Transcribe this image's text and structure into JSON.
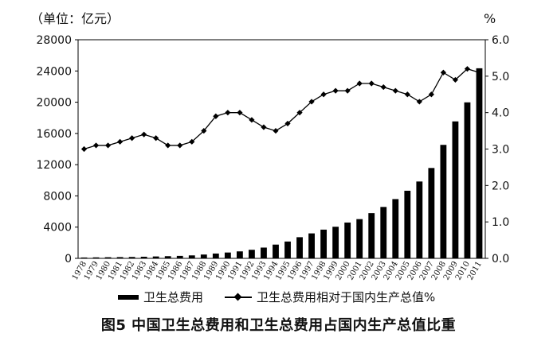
{
  "chart_data": {
    "type": "bar",
    "title": "图5 中国卫生总费用和卫生总费用占国内生产总值比重",
    "y_left_unit": "（单位：亿元）",
    "y_right_unit": "%",
    "ylim_left": [
      0,
      28000
    ],
    "ylim_right": [
      0,
      6
    ],
    "yticks_left": [
      "0",
      "4000",
      "8000",
      "12000",
      "16000",
      "20000",
      "24000",
      "28000"
    ],
    "yticks_right": [
      "0.0",
      "1.0",
      "2.0",
      "3.0",
      "4.0",
      "5.0",
      "6.0"
    ],
    "legend_placement": "bottom",
    "categories": [
      "1978",
      "1979",
      "1980",
      "1981",
      "1982",
      "1983",
      "1984",
      "1985",
      "1986",
      "1987",
      "1988",
      "1989",
      "1990",
      "1991",
      "1992",
      "1993",
      "1994",
      "1995",
      "1996",
      "1997",
      "1998",
      "1999",
      "2000",
      "2001",
      "2002",
      "2003",
      "2004",
      "2005",
      "2006",
      "2007",
      "2008",
      "2009",
      "2010",
      "2011"
    ],
    "series": [
      {
        "name": "卫生总费用",
        "type": "bar",
        "axis": "left",
        "values": [
          110,
          126,
          143,
          160,
          177,
          207,
          242,
          279,
          316,
          379,
          488,
          615,
          747,
          893,
          1097,
          1378,
          1761,
          2155,
          2709,
          3197,
          3679,
          4048,
          4587,
          5026,
          5790,
          6584,
          7590,
          8660,
          9843,
          11574,
          14535,
          17542,
          19980,
          24346
        ]
      },
      {
        "name": "卫生总费用相对于国内生产总值%",
        "type": "line",
        "axis": "right",
        "values": [
          3.0,
          3.1,
          3.1,
          3.2,
          3.3,
          3.4,
          3.3,
          3.1,
          3.1,
          3.2,
          3.5,
          3.9,
          4.0,
          4.0,
          3.8,
          3.6,
          3.5,
          3.7,
          4.0,
          4.3,
          4.5,
          4.6,
          4.6,
          4.8,
          4.8,
          4.7,
          4.6,
          4.5,
          4.3,
          4.5,
          5.1,
          4.9,
          5.2,
          5.1
        ]
      }
    ]
  }
}
